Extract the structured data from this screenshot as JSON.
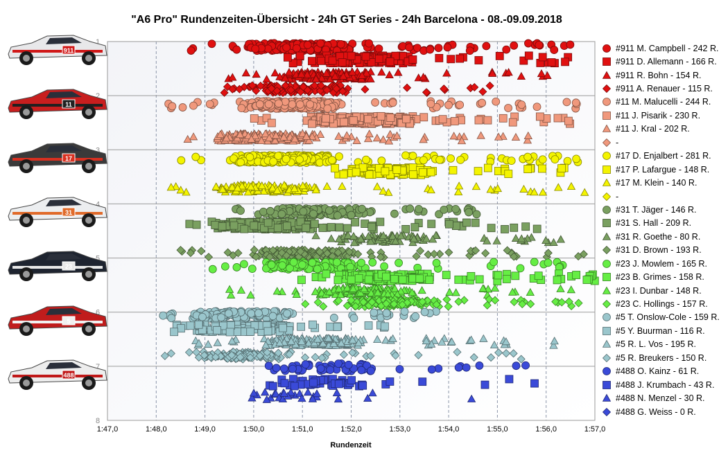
{
  "chart_data": {
    "type": "scatter",
    "title": "\"A6 Pro\" Rundenzeiten-Übersicht  - 24h GT Series  - 24h Barcelona  - 08.-09.09.2018",
    "xlabel": "Rundenzeit",
    "ylabel": "",
    "x_ticks": [
      "1:47,0",
      "1:48,0",
      "1:49,0",
      "1:50,0",
      "1:51,0",
      "1:52,0",
      "1:53,0",
      "1:54,0",
      "1:55,0",
      "1:56,0",
      "1:57,0"
    ],
    "y_ticks": [
      "1",
      "2",
      "3",
      "4",
      "5",
      "6",
      "7",
      "8"
    ],
    "xlim_seconds": [
      107,
      117
    ],
    "ylim": [
      1,
      8
    ],
    "grid": "vertical dashed",
    "legend_position": "right",
    "series": [
      {
        "name": "#911 M. Campbell - 242 R.",
        "car": "911",
        "color": "#e01010",
        "marker": "circle",
        "laps": 242,
        "row": 1.1,
        "range": [
          108.3,
          116.5
        ],
        "peak": 110.7
      },
      {
        "name": "#911 D. Allemann - 166 R.",
        "car": "911",
        "color": "#e01010",
        "marker": "square",
        "laps": 166,
        "row": 1.33,
        "range": [
          110.6,
          116.6
        ],
        "peak": 112.0
      },
      {
        "name": "#911 R. Bohn - 154 R.",
        "car": "911",
        "color": "#e01010",
        "marker": "triangle",
        "laps": 154,
        "row": 1.63,
        "range": [
          109.3,
          116.2
        ],
        "peak": 111.3
      },
      {
        "name": "#911 A. Renauer - 115 R.",
        "car": "911",
        "color": "#e01010",
        "marker": "diamond",
        "laps": 115,
        "row": 1.88,
        "range": [
          109.2,
          114.9
        ],
        "peak": 110.6
      },
      {
        "name": "#11 M. Malucelli - 244 R.",
        "car": "11",
        "color": "#f0987c",
        "marker": "circle",
        "laps": 244,
        "row": 2.17,
        "range": [
          107.9,
          117.0
        ],
        "peak": 110.5
      },
      {
        "name": "#11 J. Pisarik - 230 R.",
        "car": "11",
        "color": "#f0987c",
        "marker": "square",
        "laps": 230,
        "row": 2.45,
        "range": [
          110.0,
          116.5
        ],
        "peak": 112.0
      },
      {
        "name": "#11 J. Kral - 202 R.",
        "car": "11",
        "color": "#f0987c",
        "marker": "triangle",
        "laps": 202,
        "row": 2.77,
        "range": [
          108.3,
          115.8
        ],
        "peak": 110.0
      },
      {
        "name": "-",
        "car": "11",
        "color": "#f0987c",
        "marker": "diamond",
        "laps": 0,
        "row": 2.95,
        "range": [
          0,
          0
        ],
        "peak": 0
      },
      {
        "name": "#17 D. Enjalbert - 281 R.",
        "car": "17",
        "color": "#f4f400",
        "marker": "circle",
        "laps": 281,
        "row": 3.17,
        "range": [
          108.4,
          116.7
        ],
        "peak": 110.3
      },
      {
        "name": "#17 P. Lafargue - 148 R.",
        "car": "17",
        "color": "#f4f400",
        "marker": "square",
        "laps": 148,
        "row": 3.4,
        "range": [
          110.5,
          116.8
        ],
        "peak": 112.5
      },
      {
        "name": "#17 M. Klein - 140 R.",
        "car": "17",
        "color": "#f4f400",
        "marker": "triangle",
        "laps": 140,
        "row": 3.72,
        "range": [
          108.3,
          116.8
        ],
        "peak": 110.0
      },
      {
        "name": "-",
        "car": "17",
        "color": "#f4f400",
        "marker": "diamond",
        "laps": 0,
        "row": 3.95,
        "range": [
          0,
          0
        ],
        "peak": 0
      },
      {
        "name": "#31 T. Jäger - 146 R.",
        "car": "31",
        "color": "#7aa060",
        "marker": "circle",
        "laps": 146,
        "row": 4.15,
        "range": [
          109.6,
          115.3
        ],
        "peak": 111.0
      },
      {
        "name": "#31 S. Hall - 209 R.",
        "car": "31",
        "color": "#7aa060",
        "marker": "square",
        "laps": 209,
        "row": 4.4,
        "range": [
          108.6,
          116.5
        ],
        "peak": 110.0
      },
      {
        "name": "#31 R. Goethe - 80 R.",
        "car": "31",
        "color": "#7aa060",
        "marker": "triangle",
        "laps": 80,
        "row": 4.65,
        "range": [
          110.5,
          116.8
        ],
        "peak": 112.5
      },
      {
        "name": "#31 D. Brown - 193 R.",
        "car": "31",
        "color": "#7aa060",
        "marker": "diamond",
        "laps": 193,
        "row": 4.92,
        "range": [
          108.5,
          116.8
        ],
        "peak": 110.8
      },
      {
        "name": "#23 J. Mowlem - 165 R.",
        "car": "23",
        "color": "#66ee44",
        "marker": "circle",
        "laps": 165,
        "row": 5.14,
        "range": [
          109.0,
          116.5
        ],
        "peak": 111.0
      },
      {
        "name": "#23 B. Grimes - 158 R.",
        "car": "23",
        "color": "#66ee44",
        "marker": "square",
        "laps": 158,
        "row": 5.36,
        "range": [
          110.8,
          117.0
        ],
        "peak": 112.5
      },
      {
        "name": "#23 I. Dunbar - 148 R.",
        "car": "23",
        "color": "#66ee44",
        "marker": "triangle",
        "laps": 148,
        "row": 5.62,
        "range": [
          109.2,
          116.8
        ],
        "peak": 112.0
      },
      {
        "name": "#23 C. Hollings - 157 R.",
        "car": "23",
        "color": "#66ee44",
        "marker": "diamond",
        "laps": 157,
        "row": 5.83,
        "range": [
          110.5,
          116.7
        ],
        "peak": 112.5
      },
      {
        "name": "#5 T. Onslow-Cole - 159 R.",
        "car": "5",
        "color": "#9ac6cc",
        "marker": "circle",
        "laps": 159,
        "row": 6.05,
        "range": [
          108.0,
          114.0
        ],
        "peak": 109.5
      },
      {
        "name": "#5 Y. Buurman - 116 R.",
        "car": "5",
        "color": "#9ac6cc",
        "marker": "square",
        "laps": 116,
        "row": 6.3,
        "range": [
          108.2,
          113.0
        ],
        "peak": 109.5
      },
      {
        "name": "#5 R. L. Vos - 195 R.",
        "car": "5",
        "color": "#9ac6cc",
        "marker": "triangle",
        "laps": 195,
        "row": 6.55,
        "range": [
          108.5,
          116.5
        ],
        "peak": 111.0
      },
      {
        "name": "#5 R. Breukers - 150 R.",
        "car": "5",
        "color": "#9ac6cc",
        "marker": "diamond",
        "laps": 150,
        "row": 6.8,
        "range": [
          108.0,
          115.5
        ],
        "peak": 109.5
      },
      {
        "name": "#488 O. Kainz - 61 R.",
        "car": "488",
        "color": "#3a4ad8",
        "marker": "circle",
        "laps": 61,
        "row": 7.02,
        "range": [
          110.3,
          115.8
        ],
        "peak": 111.2
      },
      {
        "name": "#488 J. Krumbach - 43 R.",
        "car": "488",
        "color": "#3a4ad8",
        "marker": "square",
        "laps": 43,
        "row": 7.3,
        "range": [
          110.0,
          115.8
        ],
        "peak": 111.2
      },
      {
        "name": "#488 N. Menzel - 30 R.",
        "car": "488",
        "color": "#3a4ad8",
        "marker": "triangle",
        "laps": 30,
        "row": 7.55,
        "range": [
          109.2,
          114.6
        ],
        "peak": 110.5
      },
      {
        "name": "#488 G. Weiss - 0 R.",
        "car": "488",
        "color": "#3a4ad8",
        "marker": "diamond",
        "laps": 0,
        "row": 7.78,
        "range": [
          0,
          0
        ],
        "peak": 0
      }
    ]
  },
  "cars": [
    {
      "number": "911",
      "body": "#e8e8ea",
      "accent": "#d01818"
    },
    {
      "number": "11",
      "body": "#c81e1e",
      "accent": "#202020"
    },
    {
      "number": "17",
      "body": "#3a3a3a",
      "accent": "#d83020"
    },
    {
      "number": "31",
      "body": "#eceef0",
      "accent": "#e06a2a"
    },
    {
      "number": "23",
      "body": "#1e2430",
      "accent": "#e8e8e8"
    },
    {
      "number": "5",
      "body": "#c01c1c",
      "accent": "#f0f0f0"
    },
    {
      "number": "488",
      "body": "#ededed",
      "accent": "#c01818"
    }
  ]
}
